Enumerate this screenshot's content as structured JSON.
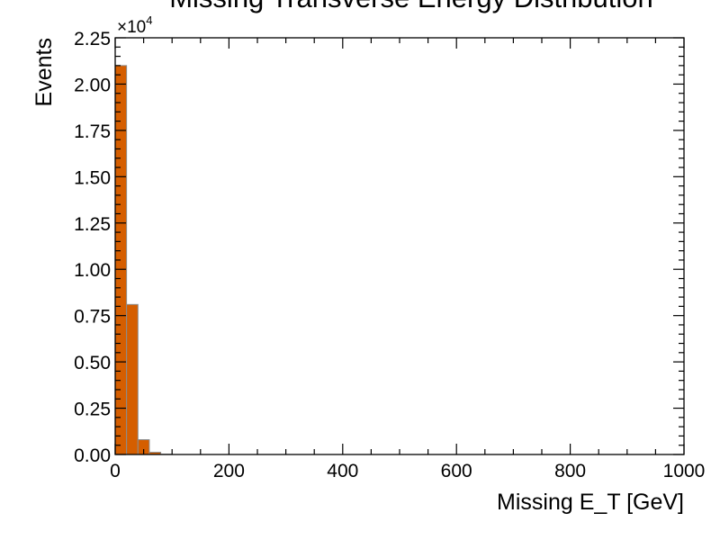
{
  "colors": {
    "bar_fill": "#d55e00",
    "bar_edge": "#8c8c8c",
    "axis": "#000000",
    "background": "#ffffff"
  },
  "chart_data": {
    "type": "bar",
    "title": "Missing Transverse Energy Distribution",
    "xlabel": "Missing E_T [GeV]",
    "ylabel": "Events",
    "xlim": [
      0,
      1000
    ],
    "ylim": [
      0,
      22500
    ],
    "y_scale_label": "×10",
    "y_scale_exponent": "4",
    "x_ticks": [
      0,
      200,
      400,
      600,
      800,
      1000
    ],
    "x_tick_labels": [
      "0",
      "200",
      "400",
      "600",
      "800",
      "1000"
    ],
    "y_ticks": [
      0,
      2500,
      5000,
      7500,
      10000,
      12500,
      15000,
      17500,
      20000,
      22500
    ],
    "y_tick_labels": [
      "0.00",
      "0.25",
      "0.50",
      "0.75",
      "1.00",
      "1.25",
      "1.50",
      "1.75",
      "2.00",
      "2.25"
    ],
    "bin_edges": [
      0,
      20,
      40,
      60,
      80,
      100
    ],
    "values": [
      21000,
      8100,
      800,
      120,
      15
    ],
    "grid": false,
    "legend": "none"
  }
}
